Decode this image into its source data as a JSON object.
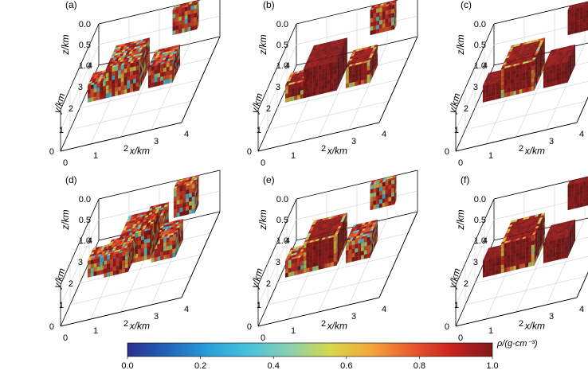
{
  "chart_data": {
    "type": "3d-voxel-grid",
    "panels": [
      {
        "label": "(a)",
        "xlabel": "x/km",
        "ylabel": "y/km",
        "zlabel": "z/km",
        "blocks": [
          {
            "name": "small-cube",
            "x": [
              0.2,
              0.8
            ],
            "y": [
              2.2,
              2.8
            ],
            "z": [
              0.6,
              1.0
            ],
            "mode": "noisy"
          },
          {
            "name": "large-cube",
            "x": [
              0.8,
              1.9
            ],
            "y": [
              2.2,
              3.3
            ],
            "z": [
              0.3,
              1.0
            ],
            "mode": "noisy"
          },
          {
            "name": "right-cube",
            "x": [
              2.2,
              3.0
            ],
            "y": [
              2.2,
              3.0
            ],
            "z": [
              0.5,
              1.0
            ],
            "mode": "noisy"
          },
          {
            "name": "back-cube",
            "x": [
              2.5,
              3.3
            ],
            "y": [
              3.8,
              4.0
            ],
            "z": [
              0.0,
              0.6
            ],
            "mode": "noisy"
          }
        ]
      },
      {
        "label": "(b)",
        "xlabel": "x/km",
        "ylabel": "y/km",
        "zlabel": "z/km",
        "blocks": [
          {
            "name": "small-cube",
            "x": [
              0.2,
              0.8
            ],
            "y": [
              2.2,
              2.8
            ],
            "z": [
              0.6,
              1.0
            ],
            "mode": "edge"
          },
          {
            "name": "large-cube",
            "x": [
              0.8,
              1.9
            ],
            "y": [
              2.2,
              3.3
            ],
            "z": [
              0.3,
              1.0
            ],
            "mode": "solid"
          },
          {
            "name": "right-cube",
            "x": [
              2.2,
              3.0
            ],
            "y": [
              2.2,
              3.0
            ],
            "z": [
              0.5,
              1.0
            ],
            "mode": "edge"
          },
          {
            "name": "back-cube",
            "x": [
              2.5,
              3.3
            ],
            "y": [
              3.8,
              4.0
            ],
            "z": [
              0.0,
              0.6
            ],
            "mode": "noisy"
          }
        ]
      },
      {
        "label": "(c)",
        "xlabel": "x/km",
        "ylabel": "y/km",
        "zlabel": "z/km",
        "blocks": [
          {
            "name": "small-cube",
            "x": [
              0.2,
              0.8
            ],
            "y": [
              2.2,
              2.8
            ],
            "z": [
              0.6,
              1.0
            ],
            "mode": "solid"
          },
          {
            "name": "large-cube",
            "x": [
              0.8,
              1.9
            ],
            "y": [
              2.2,
              3.3
            ],
            "z": [
              0.3,
              1.0
            ],
            "mode": "edge"
          },
          {
            "name": "right-cube",
            "x": [
              2.2,
              3.0
            ],
            "y": [
              2.2,
              3.0
            ],
            "z": [
              0.5,
              1.0
            ],
            "mode": "solid"
          },
          {
            "name": "back-cube",
            "x": [
              2.5,
              3.3
            ],
            "y": [
              3.8,
              4.0
            ],
            "z": [
              0.0,
              0.6
            ],
            "mode": "solid"
          }
        ]
      },
      {
        "label": "(d)",
        "xlabel": "x/km",
        "ylabel": "y/km",
        "zlabel": "z/km",
        "blocks": [
          {
            "name": "small-cube",
            "x": [
              0.2,
              0.8
            ],
            "y": [
              2.2,
              2.8
            ],
            "z": [
              0.6,
              1.0
            ],
            "mode": "noisy"
          },
          {
            "name": "scatter-left",
            "x": [
              0.8,
              1.6
            ],
            "y": [
              2.0,
              2.8
            ],
            "z": [
              0.5,
              1.0
            ],
            "mode": "noisy"
          },
          {
            "name": "large-cube",
            "x": [
              1.2,
              2.2
            ],
            "y": [
              2.4,
              3.4
            ],
            "z": [
              0.3,
              1.0
            ],
            "mode": "noisy"
          },
          {
            "name": "bridge",
            "x": [
              1.9,
              2.5
            ],
            "y": [
              2.8,
              3.4
            ],
            "z": [
              0.2,
              0.9
            ],
            "mode": "noisy"
          },
          {
            "name": "right-cube",
            "x": [
              2.3,
              3.1
            ],
            "y": [
              2.2,
              3.0
            ],
            "z": [
              0.5,
              1.0
            ],
            "mode": "noisy"
          },
          {
            "name": "back-cube",
            "x": [
              2.6,
              3.3
            ],
            "y": [
              3.6,
              4.0
            ],
            "z": [
              0.0,
              0.7
            ],
            "mode": "noisy"
          }
        ]
      },
      {
        "label": "(e)",
        "xlabel": "x/km",
        "ylabel": "y/km",
        "zlabel": "z/km",
        "blocks": [
          {
            "name": "small-cube",
            "x": [
              0.2,
              0.8
            ],
            "y": [
              2.2,
              2.8
            ],
            "z": [
              0.6,
              1.0
            ],
            "mode": "noisy"
          },
          {
            "name": "large-cube",
            "x": [
              0.8,
              1.9
            ],
            "y": [
              2.2,
              3.3
            ],
            "z": [
              0.3,
              1.0
            ],
            "mode": "edge"
          },
          {
            "name": "right-cube",
            "x": [
              2.2,
              3.0
            ],
            "y": [
              2.2,
              3.0
            ],
            "z": [
              0.5,
              1.0
            ],
            "mode": "noisy"
          },
          {
            "name": "back-cube",
            "x": [
              2.5,
              3.3
            ],
            "y": [
              3.8,
              4.0
            ],
            "z": [
              0.0,
              0.6
            ],
            "mode": "noisy"
          }
        ]
      },
      {
        "label": "(f)",
        "xlabel": "x/km",
        "ylabel": "y/km",
        "zlabel": "z/km",
        "blocks": [
          {
            "name": "small-cube",
            "x": [
              0.2,
              0.8
            ],
            "y": [
              2.2,
              2.8
            ],
            "z": [
              0.6,
              1.0
            ],
            "mode": "solid"
          },
          {
            "name": "large-cube",
            "x": [
              0.8,
              1.9
            ],
            "y": [
              2.2,
              3.3
            ],
            "z": [
              0.3,
              1.0
            ],
            "mode": "edge"
          },
          {
            "name": "right-cube",
            "x": [
              2.2,
              3.0
            ],
            "y": [
              2.2,
              3.0
            ],
            "z": [
              0.5,
              1.0
            ],
            "mode": "solid"
          },
          {
            "name": "back-cube",
            "x": [
              2.5,
              3.3
            ],
            "y": [
              3.8,
              4.0
            ],
            "z": [
              0.0,
              0.6
            ],
            "mode": "solid"
          }
        ]
      }
    ],
    "axes": {
      "x_ticks": [
        "0",
        "1",
        "2",
        "3",
        "4"
      ],
      "y_ticks": [
        "0",
        "1",
        "2",
        "3",
        "4"
      ],
      "z_ticks": [
        "0.0",
        "0.5",
        "1.0"
      ],
      "xlim": [
        0,
        4
      ],
      "ylim": [
        0,
        4
      ],
      "zlim": [
        0,
        1
      ]
    },
    "colorbar": {
      "label": "ρ/(g·cm⁻³)",
      "ticks": [
        "0.0",
        "0.2",
        "0.4",
        "0.6",
        "0.8",
        "1.0"
      ],
      "range": [
        0,
        1
      ],
      "colormap": [
        "#2b2f8f",
        "#2165b8",
        "#2a9fd8",
        "#49c2de",
        "#8ad0b0",
        "#d6d84a",
        "#f3a73a",
        "#e85a2e",
        "#c8221f",
        "#7f1a1a"
      ]
    }
  }
}
